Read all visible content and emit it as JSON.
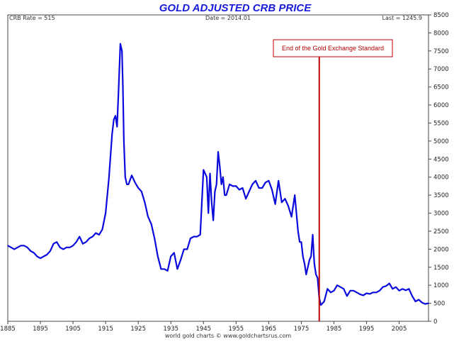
{
  "chart_data": {
    "type": "line",
    "title": "GOLD ADJUSTED CRB PRICE",
    "header": {
      "left": "CRB Rate = 515",
      "center": "Date = 2014.01",
      "right": "Last = 1245.9"
    },
    "credit": "world gold charts © www.goldchartsrus.com",
    "xlim": [
      1885,
      2014
    ],
    "ylim": [
      0,
      8500
    ],
    "x_ticks": [
      "1885",
      "1895",
      "1905",
      "1915",
      "1925",
      "1935",
      "1945",
      "1955",
      "1965",
      "1975",
      "1985",
      "1995",
      "2005"
    ],
    "y_ticks": [
      "0",
      "500",
      "1000",
      "1500",
      "2000",
      "2500",
      "3000",
      "3500",
      "4000",
      "4500",
      "5000",
      "5500",
      "6000",
      "6500",
      "7000",
      "7500",
      "8000",
      "8500"
    ],
    "grid": false,
    "line_color": "#0a0adc",
    "annotation": {
      "label": "End of the Gold Exchange Standard",
      "x": 1980.5,
      "color": "#c00000"
    },
    "series": [
      {
        "x": [
          1885,
          1886,
          1887,
          1888,
          1889,
          1890,
          1891,
          1892,
          1893,
          1894,
          1895,
          1896,
          1897,
          1898,
          1899,
          1900,
          1901,
          1902,
          1903,
          1904,
          1905,
          1906,
          1907,
          1908,
          1909,
          1910,
          1911,
          1912,
          1913,
          1914,
          1915,
          1916,
          1917,
          1917.5,
          1918,
          1918.5,
          1919,
          1919.5,
          1920,
          1920.3,
          1920.6,
          1921,
          1921.5,
          1922,
          1923,
          1924,
          1925,
          1926,
          1927,
          1928,
          1929,
          1930,
          1931,
          1932,
          1933,
          1934,
          1935,
          1936,
          1937,
          1938,
          1939,
          1940,
          1941,
          1942,
          1943,
          1944,
          1945,
          1946,
          1946.5,
          1947,
          1947.5,
          1948,
          1948.5,
          1949,
          1949.5,
          1950,
          1950.5,
          1951,
          1951.5,
          1952,
          1953,
          1954,
          1955,
          1956,
          1957,
          1958,
          1959,
          1960,
          1961,
          1962,
          1963,
          1964,
          1965,
          1966,
          1967,
          1968,
          1969,
          1970,
          1971,
          1972,
          1973,
          1973.5,
          1974,
          1974.5,
          1975,
          1975.5,
          1976,
          1976.5,
          1977,
          1977.5,
          1978,
          1978.5,
          1979,
          1979.5,
          1980,
          1980.5,
          1981,
          1982,
          1983,
          1984,
          1985,
          1986,
          1987,
          1988,
          1989,
          1990,
          1991,
          1992,
          1993,
          1994,
          1995,
          1996,
          1997,
          1998,
          1999,
          2000,
          2001,
          2002,
          2003,
          2004,
          2005,
          2006,
          2007,
          2008,
          2009,
          2010,
          2011,
          2012,
          2013,
          2014
        ],
        "values": [
          2100,
          2050,
          2000,
          2050,
          2100,
          2100,
          2050,
          1950,
          1900,
          1800,
          1750,
          1800,
          1850,
          1950,
          2150,
          2200,
          2050,
          2000,
          2050,
          2050,
          2100,
          2200,
          2350,
          2150,
          2200,
          2300,
          2350,
          2450,
          2400,
          2550,
          3000,
          3950,
          5200,
          5600,
          5700,
          5400,
          6500,
          7700,
          7500,
          6500,
          5000,
          4000,
          3800,
          3800,
          4050,
          3850,
          3700,
          3600,
          3300,
          2900,
          2700,
          2300,
          1800,
          1450,
          1450,
          1400,
          1800,
          1900,
          1450,
          1700,
          2000,
          2000,
          2300,
          2350,
          2350,
          2400,
          4200,
          4000,
          3000,
          4100,
          3300,
          2800,
          3600,
          3800,
          4700,
          4300,
          3800,
          4000,
          3500,
          3500,
          3800,
          3750,
          3750,
          3650,
          3700,
          3400,
          3600,
          3800,
          3900,
          3700,
          3700,
          3850,
          3900,
          3650,
          3250,
          3900,
          3300,
          3400,
          3200,
          2900,
          3500,
          3000,
          2500,
          2200,
          2200,
          1800,
          1600,
          1300,
          1500,
          1700,
          1800,
          2400,
          1600,
          1300,
          1200,
          650,
          450,
          550,
          900,
          800,
          850,
          1000,
          950,
          900,
          700,
          850,
          850,
          800,
          750,
          720,
          780,
          760,
          800,
          800,
          850,
          950,
          980,
          1050,
          900,
          950,
          850,
          900,
          860,
          900,
          700,
          550,
          600,
          520,
          480,
          500
        ]
      }
    ]
  }
}
